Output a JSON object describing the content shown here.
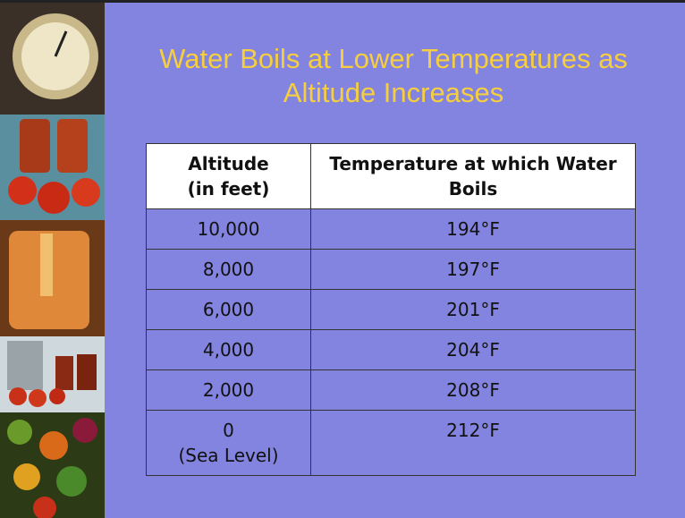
{
  "slide": {
    "title": [
      "Water Boils at Lower Temperatures as",
      "Altitude Increases"
    ],
    "table": {
      "header": [
        [
          "Altitude",
          "(in feet)"
        ],
        [
          "Temperature at which Water",
          "Boils"
        ]
      ],
      "rows": [
        [
          [
            "10,000"
          ],
          [
            "194°F"
          ]
        ],
        [
          [
            "8,000"
          ],
          [
            "197°F"
          ]
        ],
        [
          [
            "6,000"
          ],
          [
            "201°F"
          ]
        ],
        [
          [
            "4,000"
          ],
          [
            "204°F"
          ]
        ],
        [
          [
            "2,000"
          ],
          [
            "208°F"
          ]
        ],
        [
          [
            "0",
            "(Sea Level)"
          ],
          [
            "212°F"
          ]
        ]
      ]
    }
  }
}
